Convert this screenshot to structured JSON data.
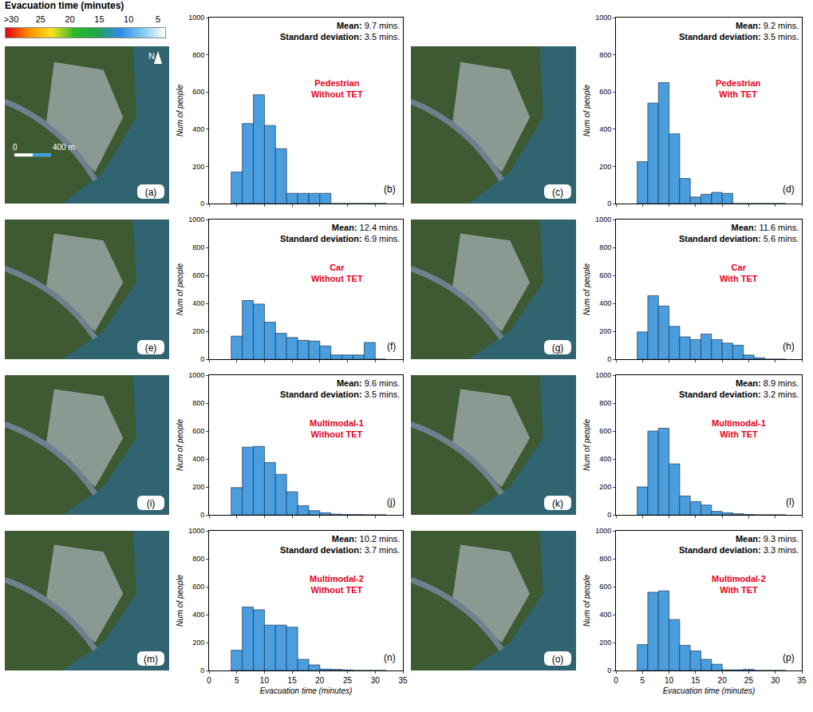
{
  "chart_data": [
    {
      "type": "histogram",
      "title": [
        "Pedestrian",
        "Without TET"
      ],
      "annotations": [
        "Mean: 9.7 mins.",
        "Standard deviation: 3.5 mins."
      ],
      "panel": "(b)",
      "bins": [
        4,
        6,
        8,
        10,
        12,
        14,
        16,
        18,
        20,
        22,
        24,
        26,
        28,
        30,
        32
      ],
      "values": [
        170,
        430,
        585,
        420,
        295,
        55,
        55,
        55,
        55,
        0,
        0,
        0,
        0,
        0
      ],
      "color": "#4a9ede",
      "xlim": [
        0,
        35
      ],
      "xticks": [
        0,
        5,
        10,
        15,
        20,
        25,
        30,
        35
      ],
      "ylim": [
        0,
        1000
      ],
      "yticks": [
        0,
        200,
        400,
        600,
        800,
        1000
      ],
      "ylabel": "Num of people",
      "tick_labels": "y"
    },
    {
      "type": "histogram",
      "title": [
        "Pedestrian",
        "With TET"
      ],
      "annotations": [
        "Mean: 9.2 mins.",
        "Standard deviation: 3.5 mins."
      ],
      "panel": "(d)",
      "bins": [
        4,
        6,
        8,
        10,
        12,
        14,
        16,
        18,
        20,
        22,
        24,
        26,
        28,
        30,
        32
      ],
      "values": [
        225,
        540,
        650,
        375,
        135,
        35,
        50,
        60,
        55,
        0,
        0,
        0,
        0,
        0
      ],
      "color": "#4a9ede",
      "xlim": [
        0,
        35
      ],
      "xticks": [
        0,
        5,
        10,
        15,
        20,
        25,
        30,
        35
      ],
      "ylim": [
        0,
        1000
      ],
      "yticks": [
        0,
        200,
        400,
        600,
        800,
        1000
      ],
      "ylabel": "Num of people",
      "tick_labels": "y"
    },
    {
      "type": "histogram",
      "title": [
        "Car",
        "Without TET"
      ],
      "annotations": [
        "Mean: 12.4 mins.",
        "Standard deviation: 6.9 mins."
      ],
      "panel": "(f)",
      "bins": [
        4,
        6,
        8,
        10,
        12,
        14,
        16,
        18,
        20,
        22,
        24,
        26,
        28,
        30,
        32
      ],
      "values": [
        165,
        420,
        395,
        265,
        185,
        155,
        135,
        130,
        95,
        30,
        30,
        30,
        120,
        0
      ],
      "color": "#4a9ede",
      "xlim": [
        0,
        35
      ],
      "xticks": [
        0,
        5,
        10,
        15,
        20,
        25,
        30,
        35
      ],
      "ylim": [
        0,
        1000
      ],
      "yticks": [
        0,
        200,
        400,
        600,
        800,
        1000
      ],
      "ylabel": "Num of people",
      "tick_labels": "y"
    },
    {
      "type": "histogram",
      "title": [
        "Car",
        "With TET"
      ],
      "annotations": [
        "Mean: 11.6 mins.",
        "Standard deviation: 5.6 mins."
      ],
      "panel": "(h)",
      "bins": [
        4,
        6,
        8,
        10,
        12,
        14,
        16,
        18,
        20,
        22,
        24,
        26,
        28,
        30,
        32
      ],
      "values": [
        195,
        455,
        380,
        235,
        160,
        140,
        180,
        140,
        115,
        100,
        30,
        10,
        0,
        0
      ],
      "color": "#4a9ede",
      "xlim": [
        0,
        35
      ],
      "xticks": [
        0,
        5,
        10,
        15,
        20,
        25,
        30,
        35
      ],
      "ylim": [
        0,
        1000
      ],
      "yticks": [
        0,
        200,
        400,
        600,
        800,
        1000
      ],
      "ylabel": "Num of people",
      "tick_labels": "y"
    },
    {
      "type": "histogram",
      "title": [
        "Multimodal-1",
        "Without TET"
      ],
      "annotations": [
        "Mean: 9.6 mins.",
        "Standard deviation: 3.5 mins."
      ],
      "panel": "(j)",
      "bins": [
        4,
        6,
        8,
        10,
        12,
        14,
        16,
        18,
        20,
        22,
        24,
        26,
        28,
        30,
        32
      ],
      "values": [
        195,
        485,
        490,
        375,
        290,
        165,
        65,
        30,
        15,
        5,
        2,
        2,
        0,
        0
      ],
      "color": "#4a9ede",
      "xlim": [
        0,
        35
      ],
      "xticks": [
        0,
        5,
        10,
        15,
        20,
        25,
        30,
        35
      ],
      "ylim": [
        0,
        1000
      ],
      "yticks": [
        0,
        200,
        400,
        600,
        800,
        1000
      ],
      "ylabel": "Num of people",
      "tick_labels": "y"
    },
    {
      "type": "histogram",
      "title": [
        "Multimodal-1",
        "With TET"
      ],
      "annotations": [
        "Mean: 8.9 mins.",
        "Standard deviation: 3.2 mins."
      ],
      "panel": "(l)",
      "bins": [
        4,
        6,
        8,
        10,
        12,
        14,
        16,
        18,
        20,
        22,
        24,
        26,
        28,
        30,
        32
      ],
      "values": [
        200,
        600,
        620,
        365,
        135,
        95,
        70,
        25,
        15,
        8,
        3,
        0,
        0,
        0
      ],
      "color": "#4a9ede",
      "xlim": [
        0,
        35
      ],
      "xticks": [
        0,
        5,
        10,
        15,
        20,
        25,
        30,
        35
      ],
      "ylim": [
        0,
        1000
      ],
      "yticks": [
        0,
        200,
        400,
        600,
        800,
        1000
      ],
      "ylabel": "Num of people",
      "tick_labels": "y"
    },
    {
      "type": "histogram",
      "title": [
        "Multimodal-2",
        "Without TET"
      ],
      "annotations": [
        "Mean: 10.2 mins.",
        "Standard deviation: 3.7 mins."
      ],
      "panel": "(n)",
      "bins": [
        4,
        6,
        8,
        10,
        12,
        14,
        16,
        18,
        20,
        22,
        24,
        26,
        28,
        30,
        32
      ],
      "values": [
        145,
        455,
        435,
        325,
        325,
        310,
        80,
        40,
        10,
        8,
        4,
        0,
        0,
        0
      ],
      "color": "#4a9ede",
      "xlim": [
        0,
        35
      ],
      "xticks": [
        0,
        5,
        10,
        15,
        20,
        25,
        30,
        35
      ],
      "ylim": [
        0,
        1000
      ],
      "yticks": [
        0,
        200,
        400,
        600,
        800,
        1000
      ],
      "xlabel": "Evacuation time (minutes)",
      "ylabel": "Num of people"
    },
    {
      "type": "histogram",
      "title": [
        "Multimodal-2",
        "With TET"
      ],
      "annotations": [
        "Mean: 9.3 mins.",
        "Standard deviation: 3.3 mins."
      ],
      "panel": "(p)",
      "bins": [
        4,
        6,
        8,
        10,
        12,
        14,
        16,
        18,
        20,
        22,
        24,
        26,
        28,
        30,
        32
      ],
      "values": [
        185,
        560,
        570,
        365,
        180,
        140,
        80,
        45,
        5,
        5,
        8,
        0,
        0,
        0
      ],
      "color": "#4a9ede",
      "xlim": [
        0,
        35
      ],
      "xticks": [
        0,
        5,
        10,
        15,
        20,
        25,
        30,
        35
      ],
      "ylim": [
        0,
        1000
      ],
      "yticks": [
        0,
        200,
        400,
        600,
        800,
        1000
      ],
      "xlabel": "Evacuation time (minutes)",
      "ylabel": "Num of people"
    }
  ],
  "maps": [
    {
      "panel": "(a)",
      "north": "N",
      "scale": [
        "0",
        "400 m"
      ]
    },
    {
      "panel": "(c)"
    },
    {
      "panel": "(e)"
    },
    {
      "panel": "(g)"
    },
    {
      "panel": "(i)"
    },
    {
      "panel": "(k)"
    },
    {
      "panel": "(m)"
    },
    {
      "panel": "(o)"
    }
  ],
  "colorbar": {
    "title": "Evacuation time (minutes)",
    "range": [
      30,
      5
    ],
    "ticks": [
      {
        "value": 30,
        "label": ">30"
      },
      25,
      20,
      15,
      10,
      5
    ],
    "colors": [
      "#e0001b",
      "#ff8c00",
      "#ffe11a",
      "#2db92d",
      "#1fa84a",
      "#2d8ae6",
      "#7ec8f0",
      "#ffffff"
    ]
  }
}
